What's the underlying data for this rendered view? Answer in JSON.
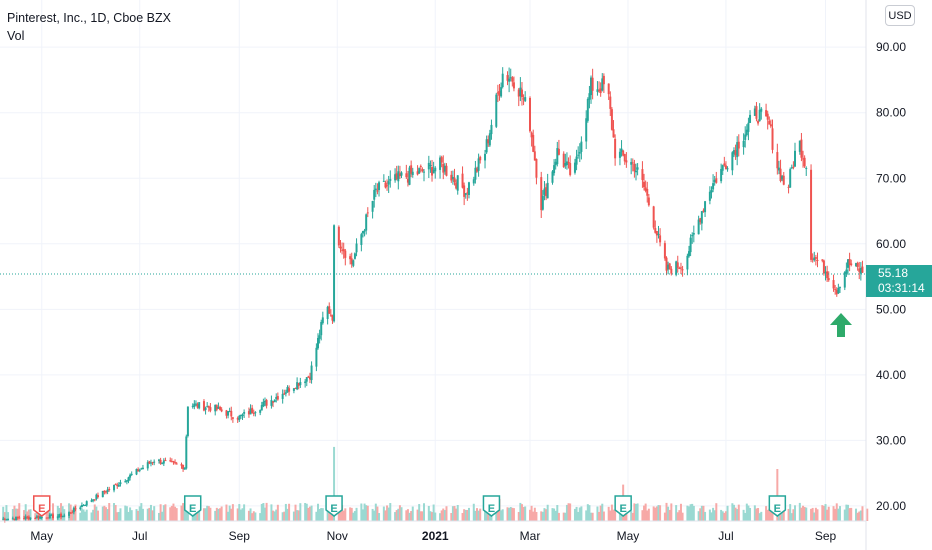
{
  "legend": {
    "symbol": "Pinterest, Inc., 1D, Cboe BZX",
    "volume_label": "Vol"
  },
  "currency": "USD",
  "last_price": {
    "price": "55.18",
    "countdown": "03:31:14"
  },
  "arrow_icon": "up-arrow-icon",
  "colors": {
    "up": "#26a69a",
    "down": "#ef5350",
    "up_vol": "#9ad9d2",
    "down_vol": "#f7a9a7",
    "arrow": "#2eaa6a",
    "grid": "#f0f3fa"
  },
  "chart_data": {
    "type": "candlestick",
    "title": "Pinterest, Inc., 1D, Cboe BZX",
    "y_axis": {
      "ticks": [
        20,
        30,
        40,
        50,
        60,
        70,
        80,
        90
      ],
      "tick_labels": [
        "20.00",
        "30.00",
        "40.00",
        "50.00",
        "60.00",
        "70.00",
        "80.00",
        "90.00"
      ],
      "range": [
        17.7,
        97.2
      ]
    },
    "x_axis": {
      "labels": [
        "May",
        "Jul",
        "Sep",
        "Nov",
        "2021",
        "Mar",
        "May",
        "Jul",
        "Sep"
      ],
      "bold": [
        "2021"
      ],
      "range": [
        "2020-04-05",
        "2021-09-15"
      ]
    },
    "series": [
      {
        "points": [
          [
            "2020-04-06",
            18
          ],
          [
            "2020-05-15",
            18.5
          ],
          [
            "2020-06-15",
            23
          ],
          [
            "2020-07-10",
            27
          ],
          [
            "2020-07-29",
            26
          ],
          [
            "2020-07-31",
            35.5
          ],
          [
            "2020-08-15",
            35
          ],
          [
            "2020-09-01",
            33.5
          ],
          [
            "2020-09-20",
            36
          ],
          [
            "2020-10-15",
            40
          ],
          [
            "2020-10-25",
            50.5
          ],
          [
            "2020-10-29",
            49
          ],
          [
            "2020-10-30",
            62
          ],
          [
            "2020-11-10",
            57
          ],
          [
            "2020-11-25",
            68
          ],
          [
            "2020-12-10",
            70
          ],
          [
            "2021-01-05",
            72
          ],
          [
            "2021-01-20",
            68
          ],
          [
            "2021-02-01",
            74
          ],
          [
            "2021-02-12",
            86
          ],
          [
            "2021-02-20",
            85
          ],
          [
            "2021-02-28",
            80
          ],
          [
            "2021-03-08",
            66
          ],
          [
            "2021-03-18",
            74
          ],
          [
            "2021-03-28",
            70
          ],
          [
            "2021-04-08",
            84
          ],
          [
            "2021-04-18",
            84
          ],
          [
            "2021-04-23",
            74
          ],
          [
            "2021-05-05",
            72
          ],
          [
            "2021-05-12",
            68
          ],
          [
            "2021-05-25",
            56
          ],
          [
            "2021-06-05",
            57
          ],
          [
            "2021-06-20",
            68
          ],
          [
            "2021-07-05",
            74
          ],
          [
            "2021-07-20",
            80
          ],
          [
            "2021-07-28",
            78
          ],
          [
            "2021-08-02",
            72
          ],
          [
            "2021-08-08",
            68
          ],
          [
            "2021-08-15",
            76
          ],
          [
            "2021-08-20",
            72
          ],
          [
            "2021-08-21",
            59
          ],
          [
            "2021-09-01",
            56
          ],
          [
            "2021-09-08",
            53
          ],
          [
            "2021-09-15",
            57
          ],
          [
            "2021-09-22",
            56
          ],
          [
            "2021-09-27",
            55.18
          ]
        ]
      }
    ],
    "volume": {
      "baseline_label": "Vol",
      "spikes": [
        [
          "2020-10-30",
          5.7
        ],
        [
          "2021-02-10",
          1.7
        ],
        [
          "2021-04-28",
          2.8
        ],
        [
          "2021-08-02",
          4.0
        ]
      ]
    },
    "earnings_markers": [
      {
        "date": "2020-05-01",
        "label": "E",
        "color": "#ef5350"
      },
      {
        "date": "2020-08-03",
        "label": "E",
        "color": "#26a69a"
      },
      {
        "date": "2020-10-30",
        "label": "E",
        "color": "#26a69a"
      },
      {
        "date": "2021-02-05",
        "label": "E",
        "color": "#26a69a"
      },
      {
        "date": "2021-04-28",
        "label": "E",
        "color": "#26a69a"
      },
      {
        "date": "2021-08-02",
        "label": "E",
        "color": "#26a69a"
      }
    ],
    "current_price": 55.18
  }
}
